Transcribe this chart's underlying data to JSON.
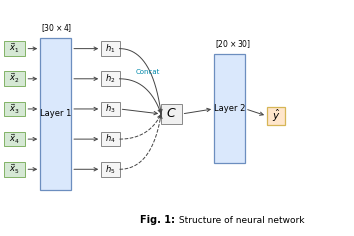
{
  "fig_width": 3.54,
  "fig_height": 2.36,
  "dpi": 100,
  "bg_color": "#ffffff",
  "layer1_label": "Layer 1",
  "layer2_label": "Layer 2",
  "layer1_dim": "$[30\\times4]$",
  "layer2_dim": "$[20\\times30]$",
  "concat_label": "Concat",
  "input_labels": [
    "$\\vec{x}_1$",
    "$\\vec{x}_2$",
    "$\\vec{x}_3$",
    "$\\vec{x}_4$",
    "$\\vec{x}_5$"
  ],
  "hidden_labels": [
    "$h_1$",
    "$h_2$",
    "$h_3$",
    "$h_4$",
    "$h_5$"
  ],
  "input_box_color": "#d5e8d4",
  "input_box_edge": "#82b366",
  "layer_box_color": "#dae8fc",
  "layer_box_edge": "#6c8ebf",
  "hidden_box_color": "#f5f5f5",
  "hidden_box_edge": "#888888",
  "C_box_color": "#f0f0f0",
  "C_box_edge": "#888888",
  "yhat_box_color": "#ffe6cc",
  "yhat_box_edge": "#d6b656",
  "arrow_color": "#444444",
  "concat_color": "#0088aa",
  "caption_bold": "Fig. 1:",
  "caption_rest": " Structure of neural network"
}
